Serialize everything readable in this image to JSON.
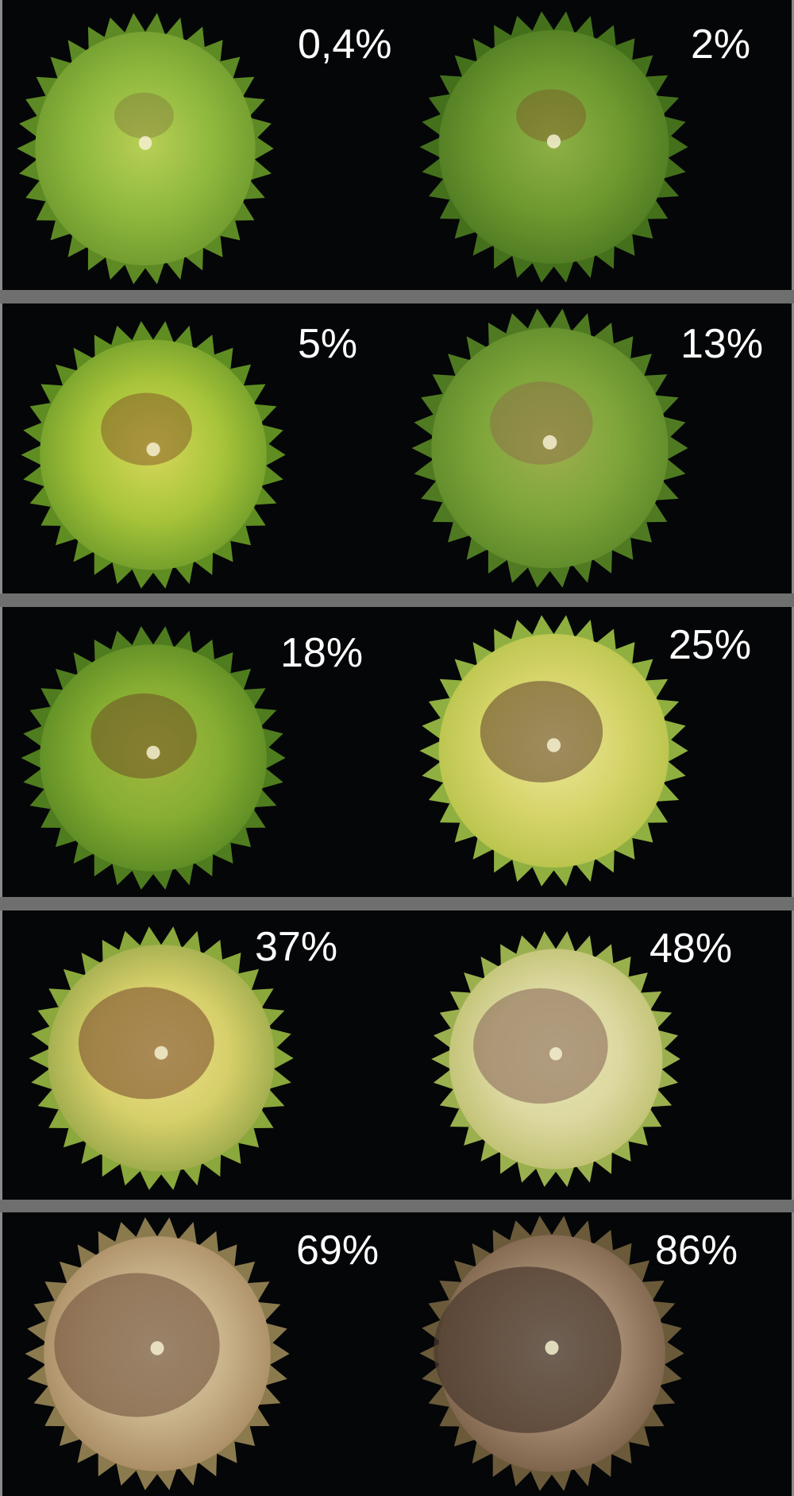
{
  "figure": {
    "rows": [
      {
        "cells": [
          {
            "label": "0,4%",
            "head": {
              "edge": "#6f9a2e",
              "mid": "#8fb93e",
              "center": "#b9cf55",
              "lesion": "#7a6a3a",
              "lesion_amount": 0.05,
              "tip": "#5d8a24"
            }
          },
          {
            "label": "2%",
            "head": {
              "edge": "#4f7a22",
              "mid": "#6e9a30",
              "center": "#8fb046",
              "lesion": "#7a4a22",
              "lesion_amount": 0.1,
              "tip": "#44701c"
            }
          }
        ]
      },
      {
        "cells": [
          {
            "label": "5%",
            "head": {
              "edge": "#6f9c2a",
              "mid": "#a8c43a",
              "center": "#d7d85a",
              "lesion": "#7a4422",
              "lesion_amount": 0.25,
              "tip": "#5f8d22"
            }
          },
          {
            "label": "13%",
            "head": {
              "edge": "#5e8a2a",
              "mid": "#7ea53a",
              "center": "#a0b050",
              "lesion": "#8c6a48",
              "lesion_amount": 0.3,
              "tip": "#4f7a22"
            }
          }
        ]
      },
      {
        "cells": [
          {
            "label": "18%",
            "head": {
              "edge": "#5b8a24",
              "mid": "#86ad32",
              "center": "#a4b840",
              "lesion": "#6a4422",
              "lesion_amount": 0.35,
              "tip": "#4f7c1e"
            }
          },
          {
            "label": "25%",
            "head": {
              "edge": "#b7c34a",
              "mid": "#d6d46a",
              "center": "#ece79a",
              "lesion": "#5a3a2a",
              "lesion_amount": 0.45,
              "tip": "#8fb040"
            }
          }
        ]
      },
      {
        "cells": [
          {
            "label": "37%",
            "head": {
              "edge": "#9aa84a",
              "mid": "#d6cf6a",
              "center": "#ecdf8a",
              "lesion": "#7a4a2e",
              "lesion_amount": 0.55,
              "tip": "#8aa83c"
            }
          },
          {
            "label": "48%",
            "head": {
              "edge": "#bfc070",
              "mid": "#dcd8a0",
              "center": "#e8e4b4",
              "lesion": "#8a6a5a",
              "lesion_amount": 0.6,
              "tip": "#9ab04e"
            }
          }
        ]
      },
      {
        "cells": [
          {
            "label": "69%",
            "head": {
              "edge": "#a88a62",
              "mid": "#c8b28a",
              "center": "#d8d0b0",
              "lesion": "#7a5a44",
              "lesion_amount": 0.75,
              "tip": "#8a7a4e"
            }
          },
          {
            "label": "86%",
            "head": {
              "edge": "#7a6048",
              "mid": "#a48a70",
              "center": "#c8c0b0",
              "lesion": "#4a3a2e",
              "lesion_amount": 0.9,
              "tip": "#6a5a3a"
            }
          }
        ]
      }
    ]
  }
}
